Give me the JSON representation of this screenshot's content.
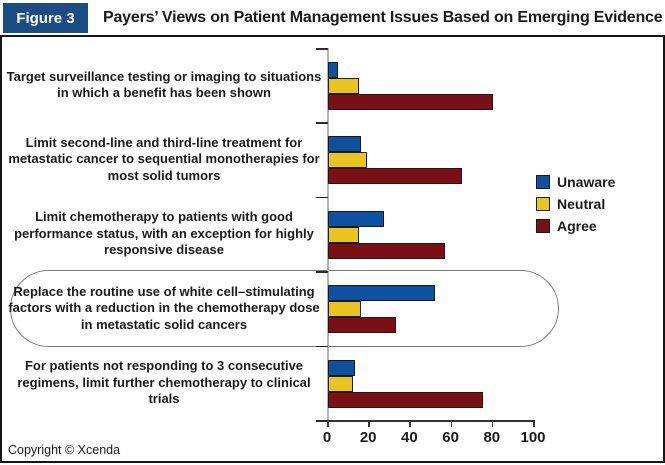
{
  "figure": {
    "label": "Figure 3",
    "title": "Payers’ Views on Patient Management Issues Based on Emerging Evidence"
  },
  "copyright": "Copyright © Xcenda",
  "colors": {
    "header_box": "#1A4C85",
    "bar_border": "#1a1a1a",
    "unaware": "#0F51A1",
    "neutral": "#EAC41E",
    "agree": "#7A1015"
  },
  "chart_data": {
    "type": "bar",
    "orientation": "horizontal",
    "title": "Payers’ Views on Patient Management Issues Based on Emerging Evidence",
    "xlabel": "",
    "ylabel": "",
    "xlim": [
      0,
      100
    ],
    "xticks": [
      0,
      20,
      40,
      60,
      80,
      100
    ],
    "grid": false,
    "legend_position": "right",
    "categories": [
      "Target surveillance testing or imaging to situations in which a benefit has been shown",
      "Limit second-line and third-line treatment for metastatic cancer to sequential monotherapies for most solid tumors",
      "Limit chemotherapy to patients with good performance status, with an exception for highly responsive disease",
      "Replace the routine use of white cell–stimulating factors with a reduction in the chemotherapy dose in metastatic solid cancers",
      "For patients not responding to 3 consecutive regimens, limit further chemotherapy to clinical trials"
    ],
    "series": [
      {
        "name": "Unaware",
        "color_key": "unaware",
        "values": [
          5,
          16,
          27,
          52,
          13
        ]
      },
      {
        "name": "Neutral",
        "color_key": "neutral",
        "values": [
          15,
          19,
          15,
          16,
          12
        ]
      },
      {
        "name": "Agree",
        "color_key": "agree",
        "values": [
          80,
          65,
          57,
          33,
          75
        ]
      }
    ],
    "annotation": {
      "shape": "oval",
      "category_index": 3,
      "note": "fourth category group circled"
    }
  }
}
